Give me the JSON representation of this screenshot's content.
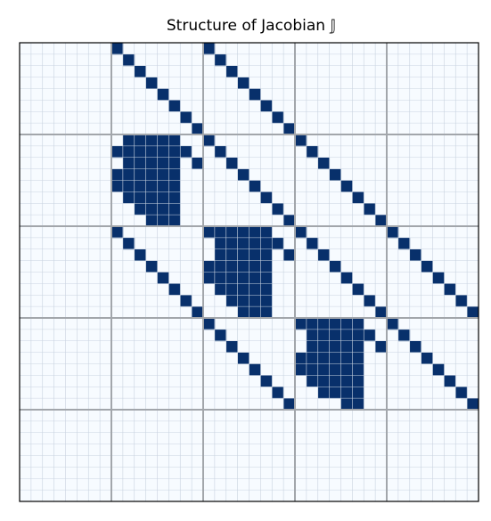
{
  "chart_data": {
    "type": "heatmap",
    "title": "Structure of Jacobian 𝕁",
    "xlabel": "",
    "ylabel": "",
    "grid": true,
    "size": 40,
    "block_size": 8,
    "colors": {
      "nonzero": "#08306b",
      "background": "#f7fbff",
      "fine_grid": "#c9d3e0",
      "block_grid": "#a2a6ab",
      "frame": "#000000"
    },
    "diagonals": [
      {
        "row_block": 0,
        "col_block": 1,
        "offset": 0
      },
      {
        "row_block": 0,
        "col_block": 2,
        "offset": 0
      },
      {
        "row_block": 1,
        "col_block": 1,
        "offset": 5
      },
      {
        "row_block": 1,
        "col_block": 2,
        "offset": 0
      },
      {
        "row_block": 1,
        "col_block": 3,
        "offset": 0
      },
      {
        "row_block": 2,
        "col_block": 1,
        "offset": 0
      },
      {
        "row_block": 2,
        "col_block": 2,
        "offset": 5
      },
      {
        "row_block": 2,
        "col_block": 3,
        "offset": 0
      },
      {
        "row_block": 2,
        "col_block": 4,
        "offset": 0
      },
      {
        "row_block": 3,
        "col_block": 2,
        "offset": 0
      },
      {
        "row_block": 3,
        "col_block": 3,
        "offset": 5
      },
      {
        "row_block": 3,
        "col_block": 4,
        "offset": 0
      }
    ],
    "dense_blocks": [
      {
        "row_block": 1,
        "col_block": 1,
        "rows": [
          [
            1,
            5
          ],
          [
            0,
            5
          ],
          [
            1,
            5
          ],
          [
            0,
            5
          ],
          [
            0,
            5
          ],
          [
            1,
            5
          ],
          [
            2,
            5
          ],
          [
            3,
            5
          ]
        ]
      },
      {
        "row_block": 2,
        "col_block": 2,
        "rows": [
          [
            0,
            5
          ],
          [
            1,
            5
          ],
          [
            1,
            5
          ],
          [
            0,
            5
          ],
          [
            0,
            5
          ],
          [
            1,
            5
          ],
          [
            2,
            5
          ],
          [
            3,
            5
          ]
        ]
      },
      {
        "row_block": 3,
        "col_block": 3,
        "rows": [
          [
            0,
            5
          ],
          [
            1,
            5
          ],
          [
            1,
            5
          ],
          [
            0,
            5
          ],
          [
            0,
            5
          ],
          [
            1,
            5
          ],
          [
            2,
            5
          ],
          [
            4,
            5
          ]
        ]
      }
    ]
  }
}
